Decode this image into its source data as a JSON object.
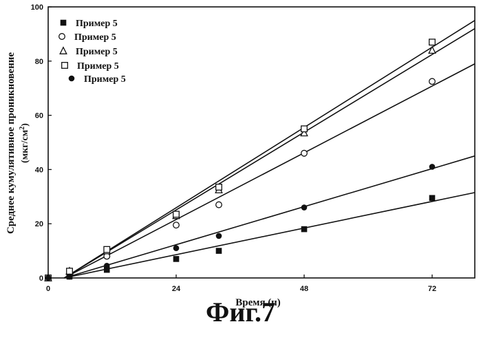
{
  "figure_caption": "Фиг.7",
  "chart_data": {
    "type": "scatter",
    "xlabel": "Время (ч)",
    "ylabel": "Среднее кумулятивное проникновение",
    "ylabel_units": "(мкг/см",
    "ylabel_units_sup": "2",
    "ylabel_units_close": ")",
    "xlim": [
      0,
      80
    ],
    "ylim": [
      0,
      100
    ],
    "x_ticks": [
      0,
      24,
      48,
      72
    ],
    "y_ticks": [
      0,
      20,
      40,
      60,
      80,
      100
    ],
    "grid": false,
    "legend_position": "top-left",
    "series": [
      {
        "name": "Пример 5",
        "marker": "filled-square",
        "points": [
          [
            0,
            0
          ],
          [
            4,
            0.5
          ],
          [
            11,
            3
          ],
          [
            24,
            7
          ],
          [
            32,
            10
          ],
          [
            48,
            18
          ],
          [
            72,
            29.5
          ]
        ],
        "fit": [
          [
            3,
            0
          ],
          [
            80,
            31.5
          ]
        ]
      },
      {
        "name": "Пример 5",
        "marker": "open-circle",
        "points": [
          [
            0,
            0
          ],
          [
            4,
            1.5
          ],
          [
            11,
            8
          ],
          [
            24,
            19.5
          ],
          [
            32,
            27
          ],
          [
            48,
            46
          ],
          [
            72,
            72.5
          ]
        ],
        "fit": [
          [
            3,
            0
          ],
          [
            80,
            79
          ]
        ]
      },
      {
        "name": "Пример 5",
        "marker": "open-triangle",
        "points": [
          [
            0,
            0
          ],
          [
            4,
            2.5
          ],
          [
            11,
            10
          ],
          [
            24,
            23
          ],
          [
            32,
            32.5
          ],
          [
            48,
            53.5
          ],
          [
            72,
            84
          ]
        ],
        "fit": [
          [
            3,
            0
          ],
          [
            80,
            92
          ]
        ]
      },
      {
        "name": "Пример 5",
        "marker": "open-square",
        "points": [
          [
            0,
            0
          ],
          [
            4,
            2.5
          ],
          [
            11,
            10.5
          ],
          [
            24,
            23.5
          ],
          [
            32,
            33.5
          ],
          [
            48,
            55
          ],
          [
            72,
            87
          ]
        ],
        "fit": [
          [
            3,
            0
          ],
          [
            80,
            95
          ]
        ]
      },
      {
        "name": "Пример 5",
        "marker": "filled-circle",
        "points": [
          [
            0,
            0
          ],
          [
            4,
            0.5
          ],
          [
            11,
            4.5
          ],
          [
            24,
            11
          ],
          [
            32,
            15.5
          ],
          [
            48,
            26
          ],
          [
            72,
            41
          ]
        ],
        "fit": [
          [
            3,
            0
          ],
          [
            80,
            45
          ]
        ]
      }
    ]
  }
}
